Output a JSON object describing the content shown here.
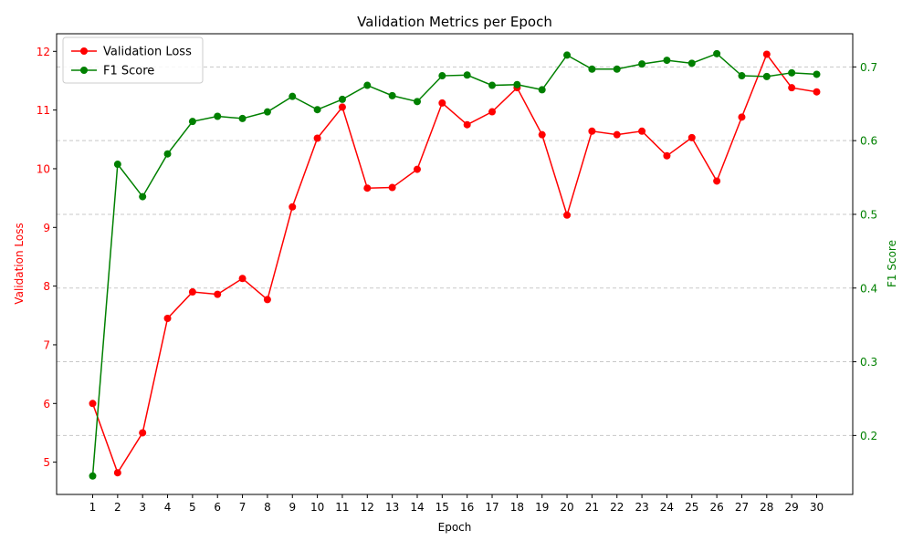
{
  "chart_data": {
    "type": "line",
    "title": "Validation Metrics per Epoch",
    "xlabel": "Epoch",
    "ylabel_left": "Validation Loss",
    "ylabel_right": "F1 Score",
    "x": [
      1,
      2,
      3,
      4,
      5,
      6,
      7,
      8,
      9,
      10,
      11,
      12,
      13,
      14,
      15,
      16,
      17,
      18,
      19,
      20,
      21,
      22,
      23,
      24,
      25,
      26,
      27,
      28,
      29,
      30
    ],
    "x_ticks": [
      "1",
      "2",
      "3",
      "4",
      "5",
      "6",
      "7",
      "8",
      "9",
      "10",
      "11",
      "12",
      "13",
      "14",
      "15",
      "16",
      "17",
      "18",
      "19",
      "20",
      "21",
      "22",
      "23",
      "24",
      "25",
      "26",
      "27",
      "28",
      "29",
      "30"
    ],
    "ylim_left": [
      4.45,
      12.3
    ],
    "ylim_right": [
      0.12,
      0.745
    ],
    "yticks_left": [
      5,
      6,
      7,
      8,
      9,
      10,
      11,
      12
    ],
    "yticks_left_labels": [
      "5",
      "6",
      "7",
      "8",
      "9",
      "10",
      "11",
      "12"
    ],
    "yticks_right": [
      0.2,
      0.3,
      0.4,
      0.5,
      0.6,
      0.7
    ],
    "yticks_right_labels": [
      "0.2",
      "0.3",
      "0.4",
      "0.5",
      "0.6",
      "0.7"
    ],
    "grid": "horizontal dashed, right axis",
    "legend_position": "top-left",
    "colors": {
      "loss": "#ff0000",
      "f1": "#008000",
      "grid": "#c8c8c8",
      "axis": "#000000"
    },
    "series": [
      {
        "name": "Validation Loss",
        "axis": "left",
        "values": [
          6.0,
          4.82,
          5.5,
          7.45,
          7.9,
          7.86,
          8.13,
          7.77,
          9.35,
          10.52,
          11.05,
          9.67,
          9.68,
          9.99,
          11.12,
          10.75,
          10.97,
          11.38,
          10.58,
          9.21,
          10.64,
          10.58,
          10.64,
          10.22,
          10.53,
          9.79,
          10.88,
          11.95,
          11.38,
          11.31
        ]
      },
      {
        "name": "F1 Score",
        "axis": "right",
        "values": [
          0.145,
          0.568,
          0.524,
          0.582,
          0.626,
          0.633,
          0.63,
          0.639,
          0.66,
          0.642,
          0.656,
          0.675,
          0.661,
          0.653,
          0.688,
          0.689,
          0.675,
          0.676,
          0.669,
          0.716,
          0.697,
          0.697,
          0.704,
          0.709,
          0.705,
          0.718,
          0.688,
          0.687,
          0.692,
          0.69
        ]
      }
    ]
  }
}
